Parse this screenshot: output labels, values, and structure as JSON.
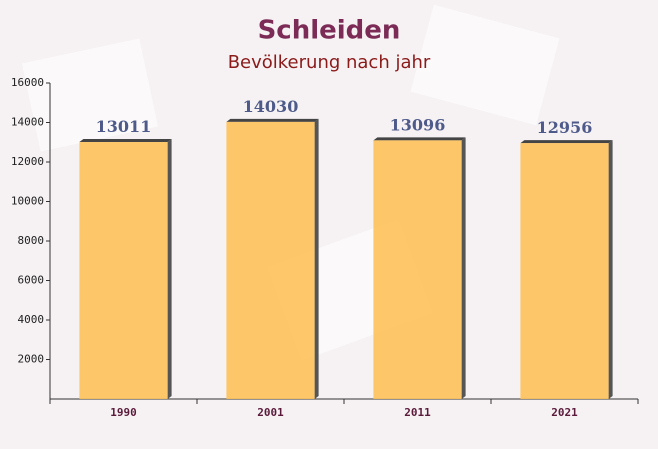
{
  "chart_data": {
    "type": "bar",
    "title": "Schleiden",
    "subtitle": "Bevölkerung nach jahr",
    "categories": [
      "1990",
      "2001",
      "2011",
      "2021"
    ],
    "values": [
      13011,
      14030,
      13096,
      12956
    ],
    "color": "#fdc15a",
    "ylim": [
      0,
      16000
    ],
    "yticks": [
      2000,
      4000,
      6000,
      8000,
      10000,
      12000,
      14000,
      16000
    ]
  }
}
